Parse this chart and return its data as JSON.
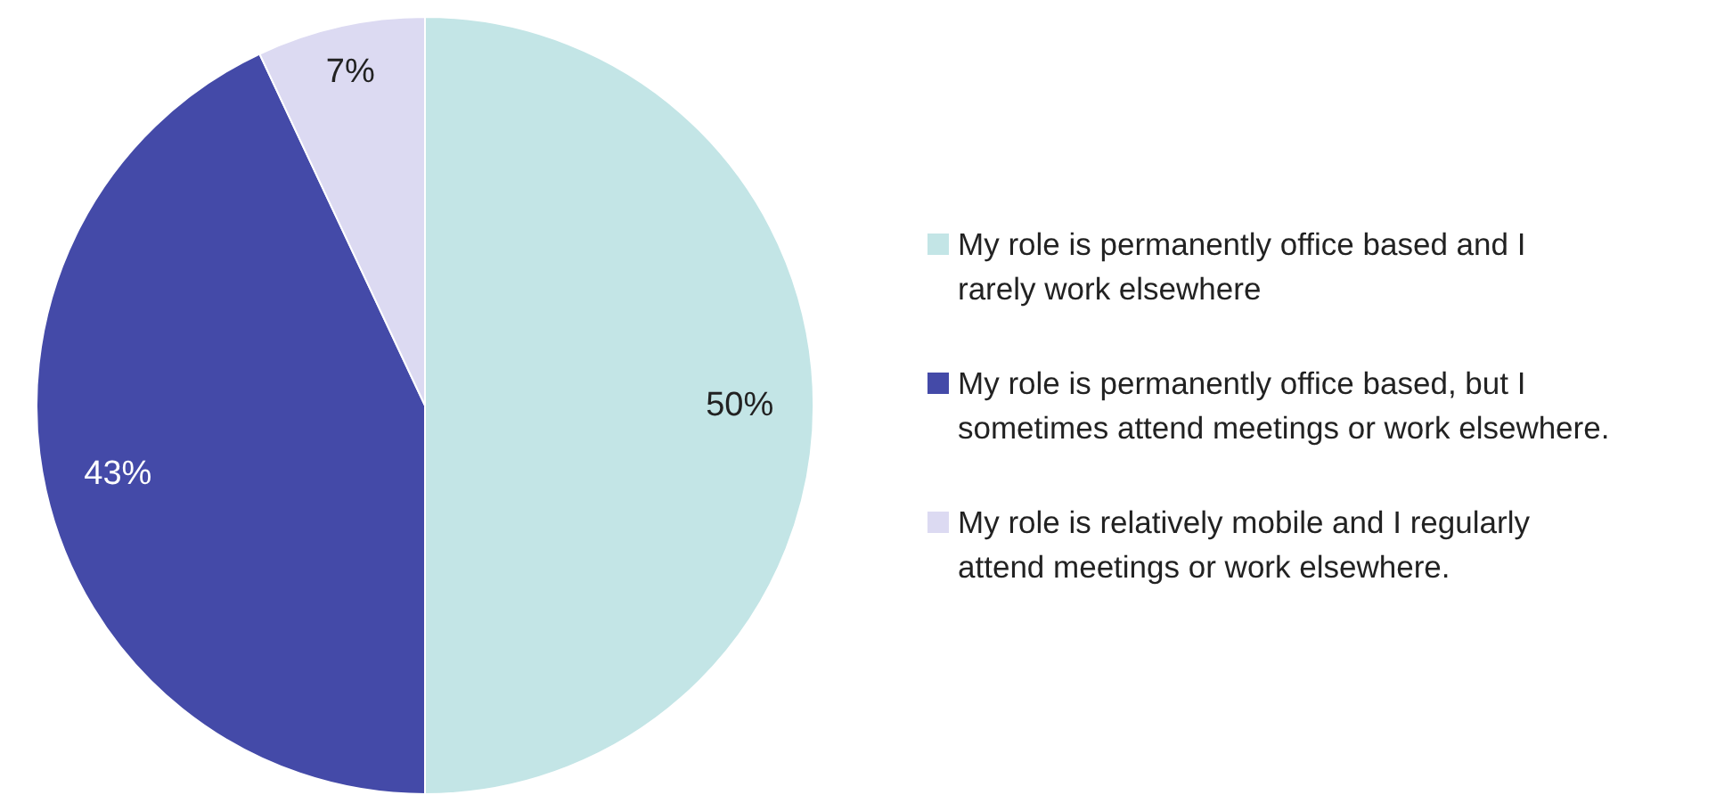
{
  "chart_data": {
    "type": "pie",
    "categories": [
      "My role is permanently office based and I rarely work elsewhere",
      "My role is permanently office based, but I sometimes attend meetings or work elsewhere.",
      "My role is relatively mobile and I regularly attend meetings or work elsewhere."
    ],
    "values": [
      50,
      43,
      7
    ],
    "colors": [
      "#c3e5e6",
      "#444aa8",
      "#dcdaf2"
    ],
    "value_labels": [
      "50%",
      "43%",
      "7%"
    ],
    "legend": "right"
  }
}
